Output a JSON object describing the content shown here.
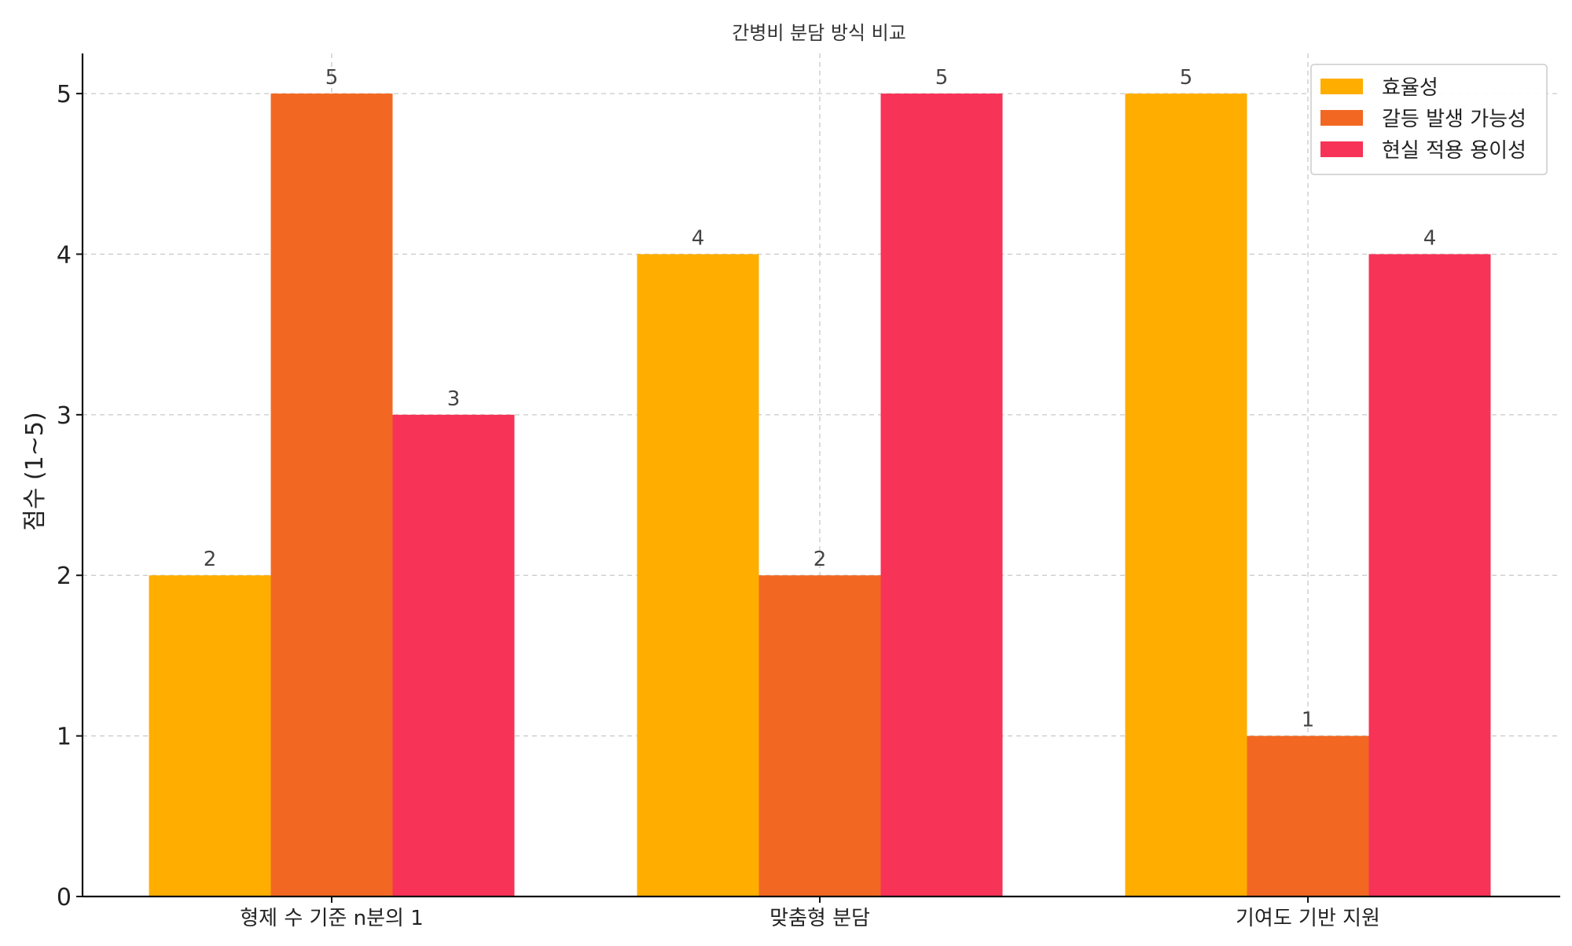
{
  "chart_data": {
    "type": "bar",
    "title": "간병비 분담 방식 비교",
    "xlabel": "",
    "ylabel": "점수 (1~5)",
    "categories": [
      "형제 수 기준 n분의 1",
      "맞춤형 분담",
      "기여도 기반 지원"
    ],
    "series": [
      {
        "name": "효율성",
        "values": [
          2,
          4,
          5
        ],
        "color": "#FFAE00"
      },
      {
        "name": "갈등 발생 가능성",
        "values": [
          5,
          2,
          1
        ],
        "color": "#F26822"
      },
      {
        "name": "현실 적용 용이성",
        "values": [
          3,
          5,
          4
        ],
        "color": "#F73357"
      }
    ],
    "ylim": [
      0,
      5.25
    ],
    "yticks": [
      0,
      1,
      2,
      3,
      4,
      5
    ],
    "grid": true,
    "legend_position": "top-right",
    "show_data_labels": true
  }
}
